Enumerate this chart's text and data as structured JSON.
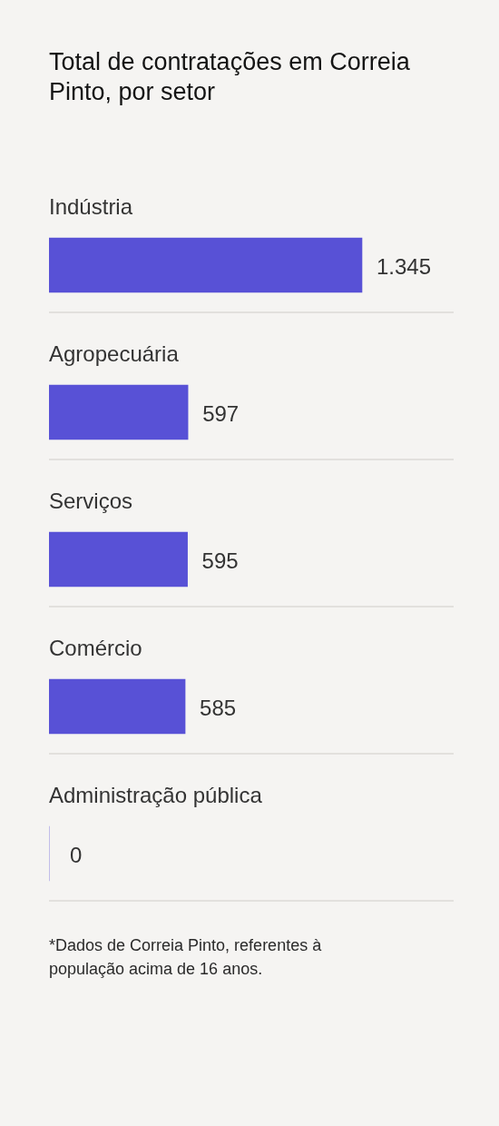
{
  "chart_data": {
    "type": "bar",
    "orientation": "horizontal",
    "title": "Total de contratações em Correia Pinto, por setor",
    "categories": [
      "Indústria",
      "Agropecuária",
      "Serviços",
      "Comércio",
      "Administração pública"
    ],
    "values": [
      1345,
      597,
      595,
      585,
      0
    ],
    "value_labels": [
      "1.345",
      "597",
      "595",
      "585",
      "0"
    ],
    "color": "#5851d6",
    "annotations": [
      "*Dados de Correia Pinto, referentes à população acima de 16 anos."
    ]
  }
}
